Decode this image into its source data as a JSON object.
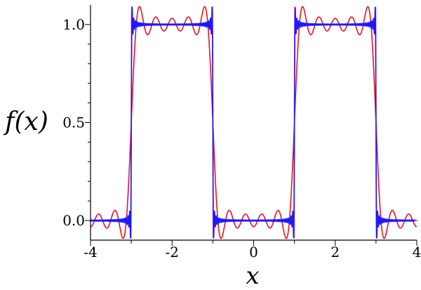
{
  "chart_data": {
    "type": "line",
    "title": "",
    "xlabel": "x",
    "ylabel": "f(x)",
    "xlim": [
      -4,
      4
    ],
    "ylim": [
      -0.1,
      1.1
    ],
    "x_ticks": [
      -4,
      -2,
      0,
      2,
      4
    ],
    "x_tick_labels": [
      "-4",
      "-2",
      "0",
      "2",
      "4"
    ],
    "y_ticks": [
      0.0,
      0.5,
      1.0
    ],
    "y_tick_labels": [
      "0.0",
      "0.5",
      "1.0"
    ],
    "grid": false,
    "legend": "none",
    "function": "square wave: 1 for 1 < |x| < 3, 0 for |x| < 1 (period 4)",
    "series": [
      {
        "color": "#e8131d",
        "harmonics": 9,
        "x_range": [
          -4,
          4
        ]
      },
      {
        "color": "#ff22ff",
        "harmonics": 201,
        "x_range": [
          -4,
          4
        ]
      },
      {
        "color": "#1a1aff",
        "harmonics": 101,
        "x_range": [
          -4,
          3.95
        ]
      }
    ]
  }
}
